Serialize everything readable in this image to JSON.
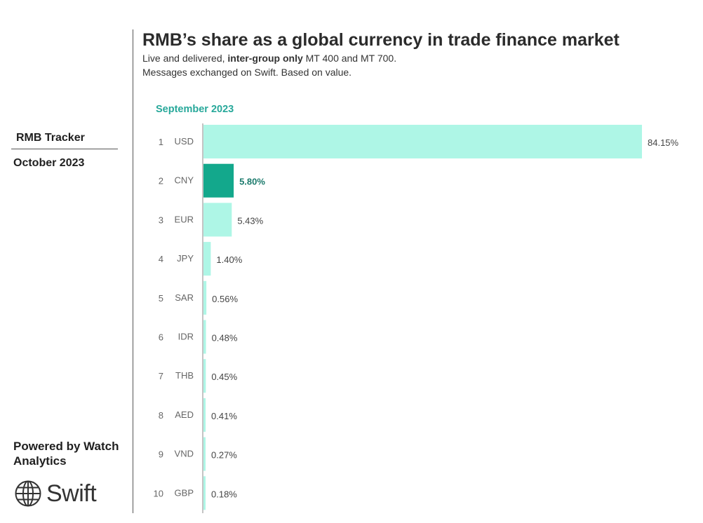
{
  "sidebar": {
    "tracker_title": "RMB Tracker",
    "tracker_date": "October 2023",
    "powered_by": "Powered by Watch Analytics",
    "brand": "Swift"
  },
  "header": {
    "title": "RMB’s share as a global currency in trade finance market",
    "subtitle_part1": "Live and delivered, ",
    "subtitle_bold": "inter-group only",
    "subtitle_part2": " MT 400 and MT 700.",
    "subtitle_line2": "Messages exchanged on Swift. Based on value."
  },
  "colors": {
    "bar": "#aef6e6",
    "bar_highlight": "#13a88c",
    "period_text": "#27a89a",
    "highlight_text": "#1b7a6c"
  },
  "chart_data": {
    "type": "bar",
    "orientation": "horizontal",
    "title": "September 2023",
    "categories": [
      "USD",
      "CNY",
      "EUR",
      "JPY",
      "SAR",
      "IDR",
      "THB",
      "AED",
      "VND",
      "GBP"
    ],
    "ranks": [
      "1",
      "2",
      "3",
      "4",
      "5",
      "6",
      "7",
      "8",
      "9",
      "10"
    ],
    "values": [
      84.15,
      5.8,
      5.43,
      1.4,
      0.56,
      0.48,
      0.45,
      0.41,
      0.27,
      0.18
    ],
    "labels": [
      "84.15%",
      "5.80%",
      "5.43%",
      "1.40%",
      "0.56%",
      "0.48%",
      "0.45%",
      "0.41%",
      "0.27%",
      "0.18%"
    ],
    "highlight": "CNY",
    "xlim": [
      0,
      84.15
    ],
    "grid": false
  }
}
